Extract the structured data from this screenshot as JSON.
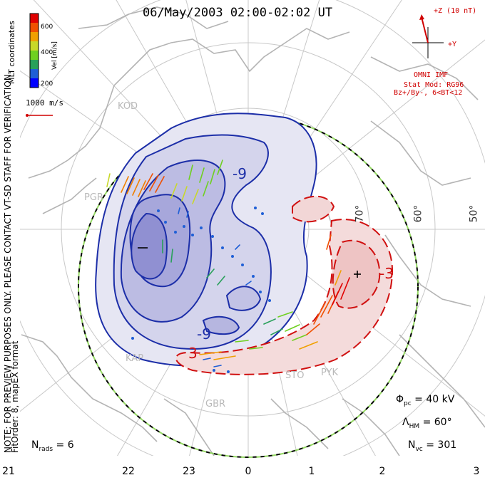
{
  "title": "06/May/2003 02:00-02:02 UT",
  "colorbar": {
    "tick_labels": [
      "600",
      "400",
      "200"
    ],
    "axis_label": "Vel [m/s]",
    "colors": [
      "#0000ff",
      "#1f5fd6",
      "#28a05a",
      "#6fd020",
      "#c8d828",
      "#f0a000",
      "#f05000",
      "#e00000"
    ]
  },
  "coordinates_label": "MLT coordinates",
  "vector_scale_label": "1000 m/s",
  "imf": {
    "z_label": "+Z (10 nT)",
    "y_label": "+Y",
    "source": "OMNI IMF",
    "stat_mod": "Stat Mod: RG96",
    "condition": "Bz+/By-, 6<BT<12"
  },
  "watermark": "NOTE: FOR PREVIEW PURPOSES ONLY. PLEASE CONTACT VT-SD STAFF FOR VERIFICATION.",
  "fit_label": "FitOrder: 8, mapEX format",
  "contour_labels": [
    "-9",
    "-9",
    "3",
    "-3",
    "+"
  ],
  "stations": [
    "KOD",
    "PGR",
    "KAP",
    "GBR",
    "STO",
    "PYK"
  ],
  "latitude_labels": [
    "70°",
    "60°",
    "50°"
  ],
  "mlt_labels": [
    "21",
    "22",
    "23",
    "0",
    "1",
    "2",
    "3"
  ],
  "stats": {
    "phi_pc": "40 kV",
    "lambda_hm": "60°",
    "n_vc": "301",
    "n_rads": "6"
  }
}
